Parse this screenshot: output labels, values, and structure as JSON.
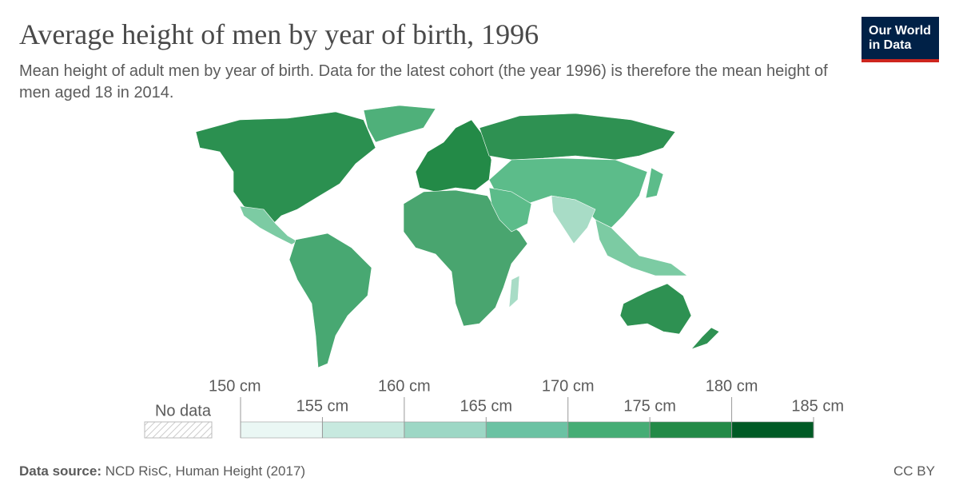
{
  "header": {
    "title": "Average height of men by year of birth, 1996",
    "subtitle": "Mean height of adult men by year of birth. Data for the latest cohort (the year 1996) is therefore the mean height of men aged 18 in 2014.",
    "logo": [
      "Our World",
      "in Data"
    ]
  },
  "legend": {
    "no_data": "No data",
    "ticks": [
      {
        "value": 150,
        "label": "150 cm"
      },
      {
        "value": 155,
        "label": "155 cm"
      },
      {
        "value": 160,
        "label": "160 cm"
      },
      {
        "value": 165,
        "label": "165 cm"
      },
      {
        "value": 170,
        "label": "170 cm"
      },
      {
        "value": 175,
        "label": "175 cm"
      },
      {
        "value": 180,
        "label": "180 cm"
      },
      {
        "value": 185,
        "label": "185 cm"
      }
    ],
    "colors": [
      "#eaf7f4",
      "#c7e9df",
      "#9dd7c5",
      "#6bc2a3",
      "#45ad75",
      "#238a47",
      "#005a25"
    ]
  },
  "footer": {
    "source": {
      "label": "Data source:",
      "text": "NCD RisC, Human Height (2017)"
    },
    "license": "CC BY"
  }
}
